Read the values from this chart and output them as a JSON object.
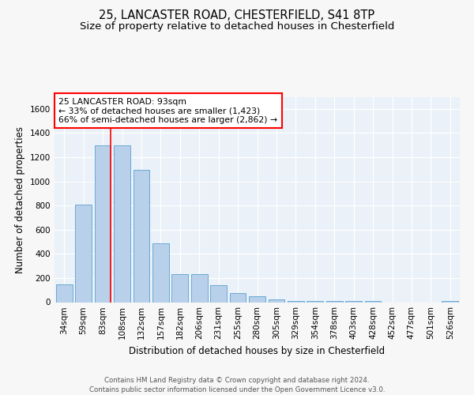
{
  "title_line1": "25, LANCASTER ROAD, CHESTERFIELD, S41 8TP",
  "title_line2": "Size of property relative to detached houses in Chesterfield",
  "xlabel": "Distribution of detached houses by size in Chesterfield",
  "ylabel": "Number of detached properties",
  "categories": [
    "34sqm",
    "59sqm",
    "83sqm",
    "108sqm",
    "132sqm",
    "157sqm",
    "182sqm",
    "206sqm",
    "231sqm",
    "255sqm",
    "280sqm",
    "305sqm",
    "329sqm",
    "354sqm",
    "378sqm",
    "403sqm",
    "428sqm",
    "452sqm",
    "477sqm",
    "501sqm",
    "526sqm"
  ],
  "values": [
    145,
    810,
    1300,
    1300,
    1095,
    490,
    235,
    235,
    140,
    75,
    48,
    25,
    13,
    13,
    13,
    13,
    13,
    0,
    0,
    0,
    13
  ],
  "bar_color": "#b8d0ea",
  "bar_edge_color": "#6aaad4",
  "red_line_x": 2.4,
  "annotation_text_line1": "25 LANCASTER ROAD: 93sqm",
  "annotation_text_line2": "← 33% of detached houses are smaller (1,423)",
  "annotation_text_line3": "66% of semi-detached houses are larger (2,862) →",
  "footer_line1": "Contains HM Land Registry data © Crown copyright and database right 2024.",
  "footer_line2": "Contains public sector information licensed under the Open Government Licence v3.0.",
  "ylim": [
    0,
    1700
  ],
  "yticks": [
    0,
    200,
    400,
    600,
    800,
    1000,
    1200,
    1400,
    1600
  ],
  "bg_color": "#eaf1f8",
  "grid_color": "#ffffff",
  "fig_bg_color": "#f7f7f7",
  "title_fontsize": 10.5,
  "subtitle_fontsize": 9.5,
  "axis_label_fontsize": 8.5,
  "tick_fontsize": 7.5,
  "annotation_fontsize": 7.8,
  "footer_fontsize": 6.2
}
